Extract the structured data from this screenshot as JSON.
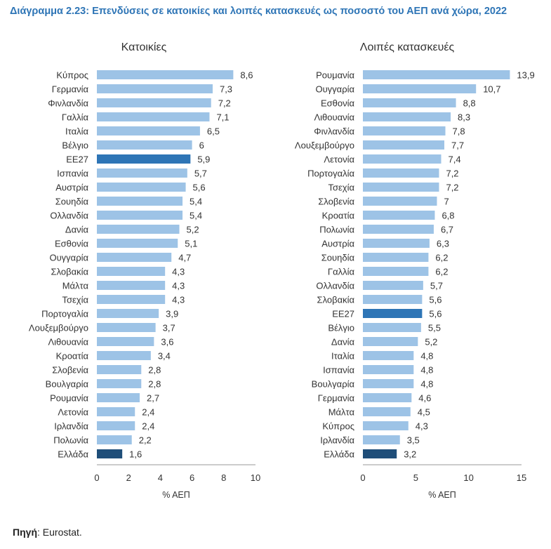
{
  "figure": {
    "title": "Διάγραμμα 2.23: Επενδύσεις σε κατοικίες και λοιπές κατασκευές ως ποσοστό του ΑΕΠ ανά χώρα, 2022",
    "source_label": "Πηγή",
    "source_text": ": Eurostat."
  },
  "colors": {
    "bar": "#9DC3E6",
    "highlight_eu": "#2E75B6",
    "highlight_gr": "#1F4E79",
    "axis": "#999999"
  },
  "chart_data": [
    {
      "type": "bar",
      "orientation": "horizontal",
      "title": "Κατοικίες",
      "xlabel": "% ΑΕΠ",
      "xlim": [
        0,
        10
      ],
      "xticks": [
        0,
        2,
        4,
        6,
        8,
        10
      ],
      "categories": [
        "Κύπρος",
        "Γερμανία",
        "Φινλανδία",
        "Γαλλία",
        "Ιταλία",
        "Βέλγιο",
        "ΕΕ27",
        "Ισπανία",
        "Αυστρία",
        "Σουηδία",
        "Ολλανδία",
        "Δανία",
        "Εσθονία",
        "Ουγγαρία",
        "Σλοβακία",
        "Μάλτα",
        "Τσεχία",
        "Πορτογαλία",
        "Λουξεμβούργο",
        "Λιθουανία",
        "Κροατία",
        "Σλοβενία",
        "Βουλγαρία",
        "Ρουμανία",
        "Λετονία",
        "Ιρλανδία",
        "Πολωνία",
        "Ελλάδα"
      ],
      "values": [
        8.6,
        7.3,
        7.2,
        7.1,
        6.5,
        6,
        5.9,
        5.7,
        5.6,
        5.4,
        5.4,
        5.2,
        5.1,
        4.7,
        4.3,
        4.3,
        4.3,
        3.9,
        3.7,
        3.6,
        3.4,
        2.8,
        2.8,
        2.7,
        2.4,
        2.4,
        2.2,
        1.6
      ],
      "value_labels": [
        "8,6",
        "7,3",
        "7,2",
        "7,1",
        "6,5",
        "6",
        "5,9",
        "5,7",
        "5,6",
        "5,4",
        "5,4",
        "5,2",
        "5,1",
        "4,7",
        "4,3",
        "4,3",
        "4,3",
        "3,9",
        "3,7",
        "3,6",
        "3,4",
        "2,8",
        "2,8",
        "2,7",
        "2,4",
        "2,4",
        "2,2",
        "1,6"
      ],
      "highlight": {
        "ΕΕ27": "#2E75B6",
        "Ελλάδα": "#1F4E79"
      }
    },
    {
      "type": "bar",
      "orientation": "horizontal",
      "title": "Λοιπές κατασκευές",
      "xlabel": "% ΑΕΠ",
      "xlim": [
        0,
        15
      ],
      "xticks": [
        0,
        5,
        10,
        15
      ],
      "categories": [
        "Ρουμανία",
        "Ουγγαρία",
        "Εσθονία",
        "Λιθουανία",
        "Φινλανδία",
        "Λουξεμβούργο",
        "Λετονία",
        "Πορτογαλία",
        "Τσεχία",
        "Σλοβενία",
        "Κροατία",
        "Πολωνία",
        "Αυστρία",
        "Σουηδία",
        "Γαλλία",
        "Ολλανδία",
        "Σλοβακία",
        "ΕΕ27",
        "Βέλγιο",
        "Δανία",
        "Ιταλία",
        "Ισπανία",
        "Βουλγαρία",
        "Γερμανία",
        "Μάλτα",
        "Κύπρος",
        "Ιρλανδία",
        "Ελλάδα"
      ],
      "values": [
        13.9,
        10.7,
        8.8,
        8.3,
        7.8,
        7.7,
        7.4,
        7.2,
        7.2,
        7,
        6.8,
        6.7,
        6.3,
        6.2,
        6.2,
        5.7,
        5.6,
        5.6,
        5.5,
        5.2,
        4.8,
        4.8,
        4.8,
        4.6,
        4.5,
        4.3,
        3.5,
        3.2
      ],
      "value_labels": [
        "13,9",
        "10,7",
        "8,8",
        "8,3",
        "7,8",
        "7,7",
        "7,4",
        "7,2",
        "7,2",
        "7",
        "6,8",
        "6,7",
        "6,3",
        "6,2",
        "6,2",
        "5,7",
        "5,6",
        "5,6",
        "5,5",
        "5,2",
        "4,8",
        "4,8",
        "4,8",
        "4,6",
        "4,5",
        "4,3",
        "3,5",
        "3,2"
      ],
      "highlight": {
        "ΕΕ27": "#2E75B6",
        "Ελλάδα": "#1F4E79"
      }
    }
  ]
}
